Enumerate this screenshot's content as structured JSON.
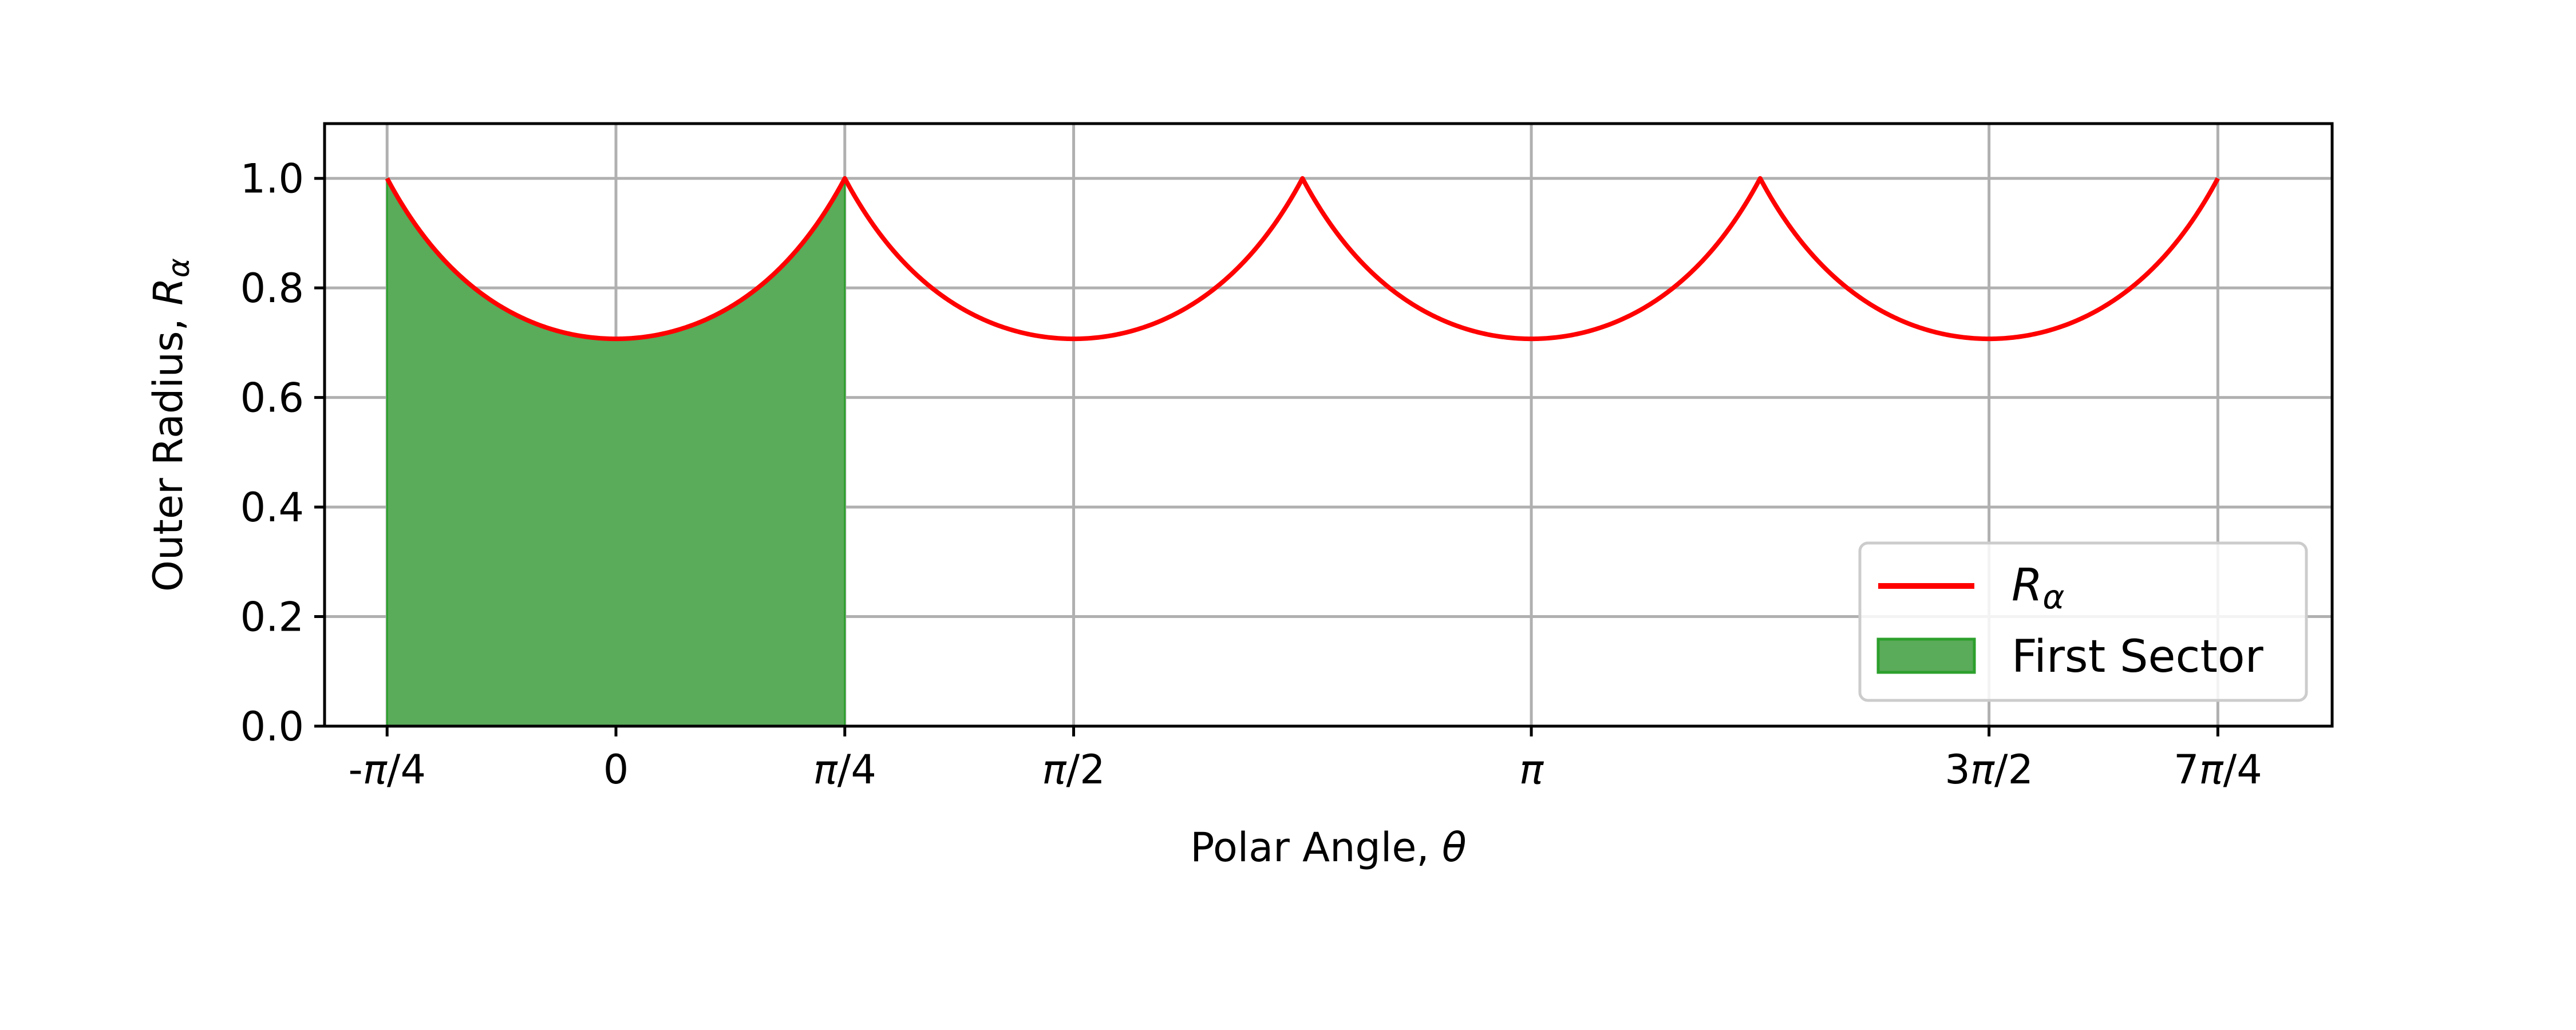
{
  "chart_data": {
    "type": "line",
    "xlabel": {
      "text": "Polar Angle, ",
      "symbol": "θ"
    },
    "ylabel": {
      "text": "Outer Radius, ",
      "symbol": "R",
      "subscript": "α"
    },
    "xlim": [
      -1.0,
      5.89
    ],
    "ylim": [
      0.0,
      1.1
    ],
    "x_ticks": [
      {
        "value": -0.7854,
        "label": "-",
        "symbol": "π",
        "suffix": "/4"
      },
      {
        "value": 0,
        "label": "0",
        "symbol": "",
        "suffix": ""
      },
      {
        "value": 0.7854,
        "label": "",
        "symbol": "π",
        "suffix": "/4"
      },
      {
        "value": 1.5708,
        "label": "",
        "symbol": "π",
        "suffix": "/2"
      },
      {
        "value": 3.1416,
        "label": "",
        "symbol": "π",
        "suffix": ""
      },
      {
        "value": 4.7124,
        "label": "3",
        "symbol": "π",
        "suffix": "/2"
      },
      {
        "value": 5.4978,
        "label": "7",
        "symbol": "π",
        "suffix": "/4"
      }
    ],
    "x_grid": [
      -0.7854,
      0,
      0.7854,
      1.5708,
      3.1416,
      4.7124,
      5.4978
    ],
    "y_ticks": [
      {
        "value": 0.0,
        "label": "0.0"
      },
      {
        "value": 0.2,
        "label": "0.2"
      },
      {
        "value": 0.4,
        "label": "0.4"
      },
      {
        "value": 0.6,
        "label": "0.6"
      },
      {
        "value": 0.8,
        "label": "0.8"
      },
      {
        "value": 1.0,
        "label": "1.0"
      }
    ],
    "grid": true,
    "series": [
      {
        "name": {
          "symbol": "R",
          "subscript": "α"
        },
        "type": "line",
        "color": "#ff0000",
        "function": "R(θ) = (1/√2) / cos(((θ + π/4) mod (π/2)) − π/4)",
        "x_range": [
          -0.7854,
          5.4978
        ],
        "sample_points": [
          [
            -0.7854,
            1.0
          ],
          [
            -0.5236,
            0.816
          ],
          [
            -0.2618,
            0.732
          ],
          [
            0,
            0.707
          ],
          [
            0.2618,
            0.732
          ],
          [
            0.5236,
            0.816
          ],
          [
            0.7854,
            1.0
          ],
          [
            1.5708,
            0.707
          ],
          [
            2.3562,
            1.0
          ],
          [
            3.1416,
            0.707
          ],
          [
            3.927,
            1.0
          ],
          [
            4.7124,
            0.707
          ],
          [
            5.4978,
            1.0
          ]
        ]
      },
      {
        "name": "First Sector",
        "type": "area",
        "color": "#5aab5a",
        "edge_color": "#2ca02c",
        "x_range": [
          -0.7854,
          0.7854
        ],
        "baseline": 0
      }
    ],
    "legend": {
      "placement": "lower-right"
    }
  }
}
